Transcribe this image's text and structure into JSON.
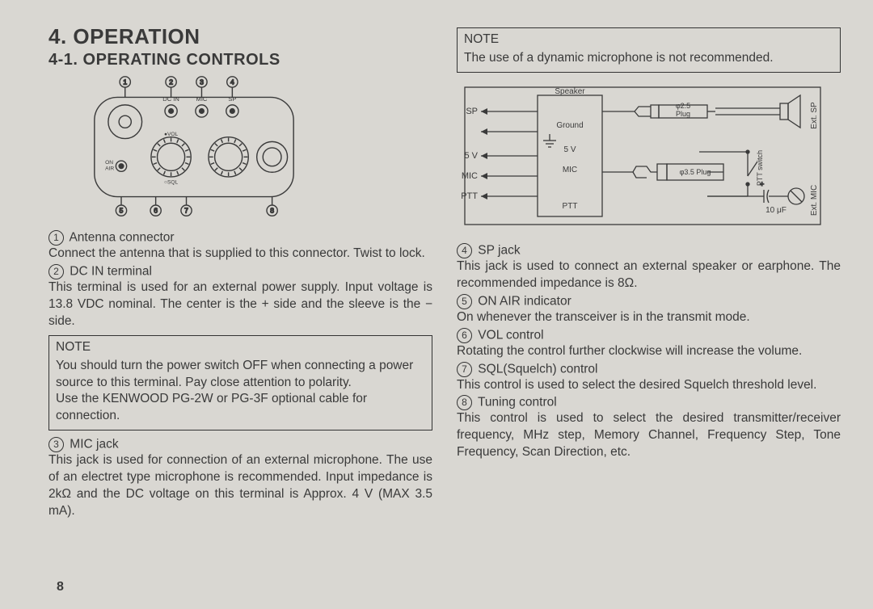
{
  "section_title": "4. OPERATION",
  "subsection_title": "4-1. OPERATING CONTROLS",
  "page_number": "8",
  "callouts_top": [
    "1",
    "2",
    "3",
    "4"
  ],
  "callouts_bottom": [
    "5",
    "6",
    "7",
    "8"
  ],
  "device_labels": {
    "dc_in": "DC IN",
    "mic": "MIC",
    "sp": "SP",
    "on_air": "ON\nAIR",
    "vol": "VOL",
    "sql": "SQL"
  },
  "left_items": [
    {
      "num": "1",
      "title": "Antenna connector",
      "body": "Connect the antenna that is supplied to this connector. Twist to lock."
    },
    {
      "num": "2",
      "title": "DC IN terminal",
      "body": "This terminal is used for an external power supply. Input voltage is 13.8 VDC nominal. The center is the + side and the sleeve is the − side."
    }
  ],
  "left_note": {
    "label": "NOTE",
    "lines": [
      "You should turn the power switch OFF when connecting a power source to this terminal. Pay close attention to polarity.",
      "Use the KENWOOD PG-2W or PG-3F optional cable for connection."
    ]
  },
  "left_items2": [
    {
      "num": "3",
      "title": "MIC jack",
      "body": "This jack is used for connection of an external microphone. The use of an electret type microphone is recommended. Input impedance is 2kΩ and the DC voltage on this terminal is Approx. 4 V (MAX 3.5 mA)."
    }
  ],
  "right_note": {
    "label": "NOTE",
    "body": "The use of a dynamic microphone is not recommended."
  },
  "schematic_labels": {
    "speaker": "Speaker",
    "sp": "SP",
    "ground": "Ground",
    "v5": "5 V",
    "mic": "MIC",
    "ptt": "PTT",
    "plug25": "φ2.5\nPlug",
    "plug35": "φ3.5 Plug",
    "ptt_sw": "PTT switch",
    "cap": "10 μF",
    "ext_sp": "Ext. SP",
    "ext_mic": "Ext. MIC"
  },
  "right_items": [
    {
      "num": "4",
      "title": "SP jack",
      "body": "This jack is used to connect an external speaker or earphone. The recommended impedance is 8Ω."
    },
    {
      "num": "5",
      "title": "ON AIR indicator",
      "body": "On whenever the transceiver is in the transmit mode."
    },
    {
      "num": "6",
      "title": "VOL control",
      "body": "Rotating the control further clockwise will increase the volume."
    },
    {
      "num": "7",
      "title": "SQL(Squelch) control",
      "body": "This control is used to select the desired Squelch threshold level."
    },
    {
      "num": "8",
      "title": "Tuning control",
      "body": "This control is used to select the desired transmitter/receiver frequency, MHz step, Memory Channel, Frequency Step, Tone Frequency, Scan Direction, etc."
    }
  ],
  "colors": {
    "stroke": "#3a3a3a",
    "bg": "#d9d7d2"
  }
}
